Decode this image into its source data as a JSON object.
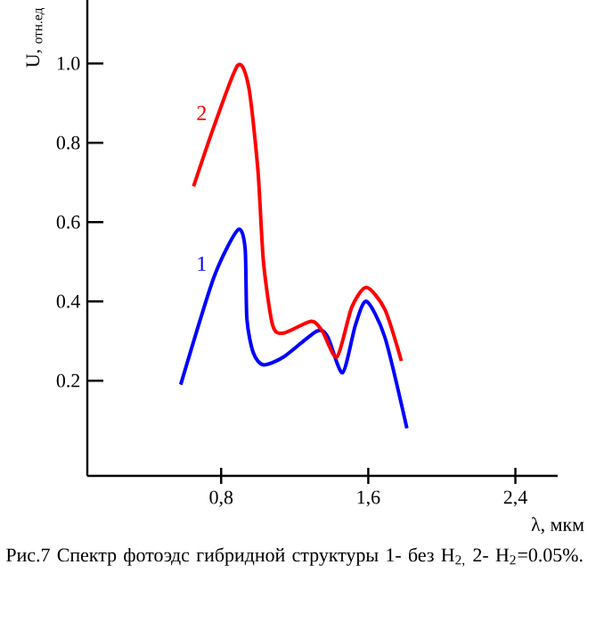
{
  "chart_data": {
    "type": "line",
    "xlabel": "λ, мкм",
    "ylabel": "U, $_{отн.ед}$",
    "annotations": [
      "Рис.7 Спектр фотоэдс гибридной структуры 1- без H$_{2,}$ 2- H$_{2}$=0.05%."
    ],
    "xlim": [
      0.072,
      2.63
    ],
    "ylim": [
      -0.04,
      1.16
    ],
    "xticks": [
      {
        "value": 0.8,
        "label": "0,8"
      },
      {
        "value": 1.6,
        "label": "1,6"
      },
      {
        "value": 2.4,
        "label": "2,4"
      }
    ],
    "yticks": [
      0.2,
      0.4,
      0.6,
      0.8,
      {
        "value": 1.0,
        "label": "1.0"
      }
    ],
    "marker": "none",
    "line_style": "solid",
    "series": [
      {
        "name": "1",
        "color": "#0000ff",
        "x": [
          0.58,
          0.76,
          0.89,
          0.93,
          0.94,
          0.975,
          1.03,
          1.14,
          1.32,
          1.38,
          1.46,
          1.53,
          1.59,
          1.69,
          1.81
        ],
        "values": [
          0.19,
          0.46,
          0.58,
          0.535,
          0.355,
          0.27,
          0.24,
          0.26,
          0.325,
          0.31,
          0.22,
          0.34,
          0.4,
          0.31,
          0.08
        ]
      },
      {
        "name": "2",
        "color": "#ff0000",
        "x": [
          0.65,
          0.76,
          0.89,
          0.95,
          1.0,
          1.03,
          1.08,
          1.14,
          1.29,
          1.35,
          1.43,
          1.51,
          1.59,
          1.69,
          1.78
        ],
        "values": [
          0.69,
          0.84,
          0.995,
          0.94,
          0.73,
          0.5,
          0.34,
          0.32,
          0.35,
          0.325,
          0.26,
          0.385,
          0.435,
          0.38,
          0.25
        ]
      }
    ]
  }
}
